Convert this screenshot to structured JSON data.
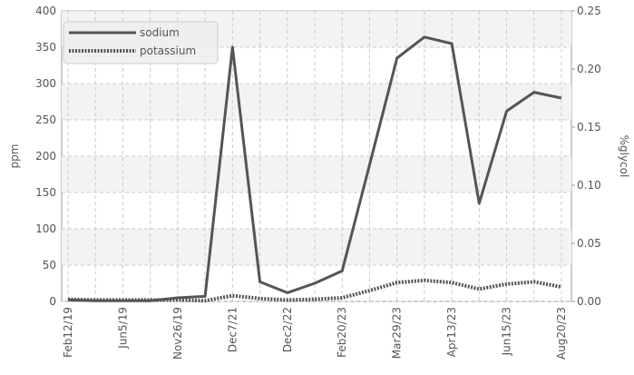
{
  "chart_data": {
    "type": "line",
    "categories": [
      "Feb12/19",
      null,
      "Jun5/19",
      null,
      "Nov26/19",
      null,
      "Dec7/21",
      null,
      "Dec2/22",
      null,
      "Feb20/23",
      null,
      "Mar29/23",
      null,
      "Apr13/23",
      null,
      "Jun15/23",
      null,
      "Aug20/23"
    ],
    "series": [
      {
        "name": "sodium",
        "color": "#555555",
        "values": [
          2,
          1,
          1,
          1,
          5,
          7,
          350,
          27,
          12,
          25,
          42,
          188,
          335,
          364,
          355,
          135,
          262,
          288,
          280
        ]
      },
      {
        "name": "potassium",
        "color": "#555555",
        "dashed": true,
        "values": [
          3,
          2,
          2,
          2,
          2,
          1,
          8,
          4,
          2,
          3,
          5,
          15,
          26,
          29,
          26,
          17,
          24,
          27,
          20
        ]
      }
    ],
    "ylabel": "ppm",
    "y2label": "%glycol",
    "ylim": [
      0,
      400
    ],
    "yticks": [
      0,
      50,
      100,
      150,
      200,
      250,
      300,
      350,
      400
    ],
    "y2lim": [
      0,
      0.25
    ],
    "y2ticks": [
      {
        "value": 0,
        "label": "0.00"
      },
      {
        "value": 0.05,
        "label": "0.05"
      },
      {
        "value": 0.1,
        "label": "0.10"
      },
      {
        "value": 0.15,
        "label": "0.15"
      },
      {
        "value": 0.2,
        "label": "0.20"
      },
      {
        "value": 0.25,
        "label": "0.25"
      }
    ],
    "grid": true,
    "legend": "upper left"
  }
}
